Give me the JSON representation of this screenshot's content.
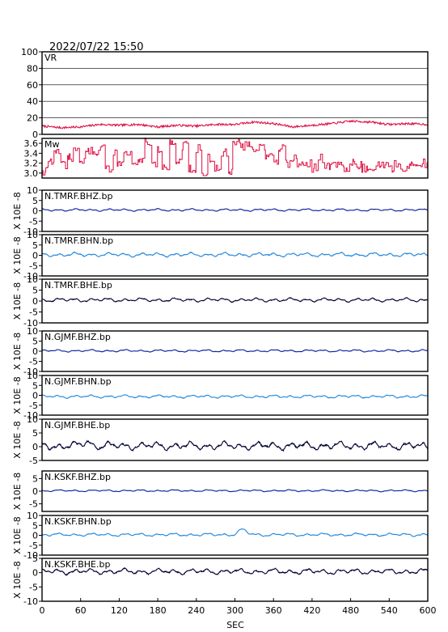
{
  "header": {
    "timestamp": "2022/07/22  15:50"
  },
  "chart_data": {
    "type": "line",
    "xlabel": "SEC",
    "xlim": [
      0,
      600
    ],
    "xticks": [
      0,
      60,
      120,
      180,
      240,
      300,
      360,
      420,
      480,
      540,
      600
    ],
    "ylabel_units": "X 10E -8",
    "panels": [
      {
        "label": "VR",
        "color": "#dd1144",
        "ylim": [
          0,
          100
        ],
        "yticks": [
          0,
          20,
          40,
          60,
          80,
          100
        ],
        "grid": true,
        "style": "line",
        "x": [
          0,
          30,
          60,
          90,
          120,
          150,
          180,
          210,
          240,
          270,
          300,
          330,
          360,
          390,
          420,
          450,
          480,
          510,
          540,
          570,
          600
        ],
        "y": [
          10,
          8,
          9,
          12,
          11,
          12,
          9,
          11,
          10,
          12,
          12,
          15,
          13,
          9,
          11,
          13,
          16,
          15,
          12,
          13,
          12
        ]
      },
      {
        "label": "Mw",
        "color": "#dd1144",
        "ylim": [
          2.9,
          3.7
        ],
        "yticks": [
          3.0,
          3.2,
          3.4,
          3.6
        ],
        "yticklabels": [
          "3.0",
          "3.2",
          "3.4",
          "3.6"
        ],
        "grid": false,
        "style": "step",
        "x": [
          0,
          10,
          20,
          30,
          40,
          50,
          60,
          70,
          80,
          90,
          100,
          110,
          120,
          130,
          140,
          150,
          160,
          170,
          180,
          190,
          200,
          210,
          220,
          230,
          240,
          250,
          260,
          270,
          280,
          290,
          300,
          310,
          320,
          330,
          340,
          350,
          360,
          370,
          380,
          390,
          400,
          410,
          420,
          430,
          440,
          450,
          460,
          470,
          480,
          490,
          500,
          510,
          520,
          530,
          540,
          550,
          560,
          570,
          580,
          590,
          600
        ],
        "y": [
          3.05,
          3.2,
          3.45,
          3.15,
          3.3,
          3.5,
          3.25,
          3.45,
          3.35,
          3.55,
          3.1,
          3.45,
          3.2,
          3.4,
          3.15,
          3.3,
          3.65,
          3.15,
          3.5,
          3.1,
          3.6,
          3.2,
          3.55,
          3.1,
          3.5,
          3.0,
          3.3,
          3.1,
          3.4,
          3.0,
          3.65,
          3.55,
          3.6,
          3.5,
          3.55,
          3.35,
          3.25,
          3.5,
          3.2,
          3.3,
          3.15,
          3.2,
          3.1,
          3.3,
          3.15,
          3.2,
          3.25,
          3.1,
          3.2,
          3.15,
          3.1,
          3.05,
          3.2,
          3.15,
          3.1,
          3.2,
          3.05,
          3.15,
          3.1,
          3.2,
          3.15
        ]
      },
      {
        "label": "N.TMRF.BHZ.bp",
        "color": "#0a1fa0",
        "ylim": [
          -10,
          10
        ],
        "yticks": [
          -10,
          -5,
          0,
          5,
          10
        ],
        "grid": false,
        "style": "wave",
        "offset": 0.4,
        "amp": 0.6,
        "seed": 11,
        "bumps": []
      },
      {
        "label": "N.TMRF.BHN.bp",
        "color": "#2288dd",
        "ylim": [
          -10,
          10
        ],
        "yticks": [
          -10,
          -5,
          0,
          5,
          10
        ],
        "grid": false,
        "style": "wave",
        "offset": 0.3,
        "amp": 1.0,
        "seed": 23,
        "bumps": []
      },
      {
        "label": "N.TMRF.BHE.bp",
        "color": "#000033",
        "ylim": [
          -10,
          10
        ],
        "yticks": [
          -10,
          -5,
          0,
          5,
          10
        ],
        "grid": false,
        "style": "wave",
        "offset": 0.5,
        "amp": 0.9,
        "seed": 37,
        "bumps": []
      },
      {
        "label": "N.GJMF.BHZ.bp",
        "color": "#0a1fa0",
        "ylim": [
          -10,
          10
        ],
        "yticks": [
          -10,
          -5,
          0,
          5,
          10
        ],
        "grid": false,
        "style": "wave",
        "offset": 0.2,
        "amp": 0.6,
        "seed": 41,
        "bumps": []
      },
      {
        "label": "N.GJMF.BHN.bp",
        "color": "#2288dd",
        "ylim": [
          -10,
          10
        ],
        "yticks": [
          -10,
          -5,
          0,
          5,
          10
        ],
        "grid": false,
        "style": "wave",
        "offset": -0.6,
        "amp": 0.8,
        "seed": 53,
        "bumps": []
      },
      {
        "label": "N.GJMF.BHE.bp",
        "color": "#000033",
        "ylim": [
          -5,
          10
        ],
        "yticks": [
          -5,
          0,
          5,
          10
        ],
        "grid": false,
        "style": "wave",
        "offset": 0.3,
        "amp": 1.5,
        "seed": 67,
        "bumps": [
          [
            70,
            1.5,
            8
          ]
        ]
      },
      {
        "label": "N.KSKF.BHZ.bp",
        "color": "#0a1fa0",
        "ylim": [
          -8,
          8
        ],
        "yticks": [
          -5,
          0,
          5
        ],
        "grid": false,
        "style": "wave",
        "offset": 0.2,
        "amp": 0.4,
        "seed": 71,
        "bumps": []
      },
      {
        "label": "N.KSKF.BHN.bp",
        "color": "#2288dd",
        "ylim": [
          -10,
          10
        ],
        "yticks": [
          -10,
          -5,
          0,
          5,
          10
        ],
        "grid": false,
        "style": "wave",
        "offset": 0.3,
        "amp": 0.8,
        "seed": 83,
        "bumps": [
          [
            312,
            2.5,
            9
          ]
        ]
      },
      {
        "label": "N.KSKF.BHE.bp",
        "color": "#000033",
        "ylim": [
          -10,
          5
        ],
        "yticks": [
          -10,
          -5,
          0,
          5
        ],
        "grid": false,
        "style": "wave",
        "offset": 0.4,
        "amp": 1.0,
        "seed": 97,
        "bumps": []
      }
    ]
  }
}
